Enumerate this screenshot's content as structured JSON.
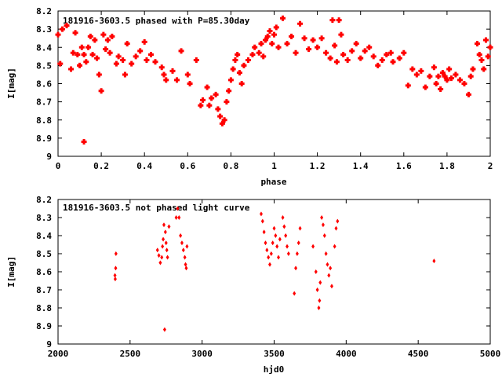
{
  "chart_data": [
    {
      "type": "scatter",
      "title": "181916-3603.5 phased with P=85.30day",
      "xlabel": "phase",
      "ylabel": "I[mag]",
      "xlim": [
        0,
        2
      ],
      "ylim": [
        9,
        8.2
      ],
      "y_inverted": true,
      "xticks": [
        "0",
        "0.2",
        "0.4",
        "0.6",
        "0.8",
        "1",
        "1.2",
        "1.4",
        "1.6",
        "1.8",
        "2"
      ],
      "yticks": [
        "8.2",
        "8.3",
        "8.4",
        "8.5",
        "8.6",
        "8.7",
        "8.8",
        "8.9",
        "9"
      ],
      "marker_color": "#ff0000",
      "grid": false,
      "series": [
        {
          "points": [
            [
              0.0,
              8.33
            ],
            [
              0.01,
              8.49
            ],
            [
              0.02,
              8.3
            ],
            [
              0.04,
              8.28
            ],
            [
              0.06,
              8.52
            ],
            [
              0.07,
              8.43
            ],
            [
              0.08,
              8.32
            ],
            [
              0.09,
              8.44
            ],
            [
              0.1,
              8.5
            ],
            [
              0.11,
              8.4
            ],
            [
              0.12,
              8.44
            ],
            [
              0.12,
              8.92
            ],
            [
              0.13,
              8.48
            ],
            [
              0.14,
              8.4
            ],
            [
              0.15,
              8.34
            ],
            [
              0.16,
              8.44
            ],
            [
              0.17,
              8.36
            ],
            [
              0.18,
              8.46
            ],
            [
              0.19,
              8.55
            ],
            [
              0.2,
              8.64
            ],
            [
              0.21,
              8.33
            ],
            [
              0.22,
              8.41
            ],
            [
              0.23,
              8.36
            ],
            [
              0.24,
              8.43
            ],
            [
              0.25,
              8.34
            ],
            [
              0.27,
              8.49
            ],
            [
              0.28,
              8.45
            ],
            [
              0.3,
              8.47
            ],
            [
              0.31,
              8.55
            ],
            [
              0.32,
              8.38
            ],
            [
              0.34,
              8.49
            ],
            [
              0.36,
              8.45
            ],
            [
              0.38,
              8.42
            ],
            [
              0.4,
              8.37
            ],
            [
              0.41,
              8.47
            ],
            [
              0.43,
              8.44
            ],
            [
              0.45,
              8.48
            ],
            [
              0.48,
              8.51
            ],
            [
              0.49,
              8.55
            ],
            [
              0.5,
              8.58
            ],
            [
              0.53,
              8.53
            ],
            [
              0.55,
              8.58
            ],
            [
              0.57,
              8.42
            ],
            [
              0.6,
              8.55
            ],
            [
              0.61,
              8.6
            ],
            [
              0.64,
              8.47
            ],
            [
              0.66,
              8.72
            ],
            [
              0.67,
              8.69
            ],
            [
              0.69,
              8.62
            ],
            [
              0.7,
              8.72
            ],
            [
              0.71,
              8.68
            ],
            [
              0.73,
              8.66
            ],
            [
              0.74,
              8.74
            ],
            [
              0.75,
              8.78
            ],
            [
              0.76,
              8.82
            ],
            [
              0.77,
              8.8
            ],
            [
              0.78,
              8.7
            ],
            [
              0.79,
              8.64
            ],
            [
              0.8,
              8.58
            ],
            [
              0.81,
              8.52
            ],
            [
              0.82,
              8.47
            ],
            [
              0.83,
              8.44
            ],
            [
              0.84,
              8.54
            ],
            [
              0.85,
              8.6
            ],
            [
              0.86,
              8.5
            ],
            [
              0.88,
              8.47
            ],
            [
              0.9,
              8.44
            ],
            [
              0.91,
              8.4
            ],
            [
              0.93,
              8.43
            ],
            [
              0.94,
              8.38
            ],
            [
              0.95,
              8.45
            ],
            [
              0.96,
              8.36
            ],
            [
              0.97,
              8.34
            ],
            [
              0.98,
              8.31
            ],
            [
              0.99,
              8.38
            ],
            [
              1.0,
              8.33
            ],
            [
              1.01,
              8.29
            ],
            [
              1.02,
              8.4
            ],
            [
              1.04,
              8.24
            ],
            [
              1.06,
              8.38
            ],
            [
              1.08,
              8.34
            ],
            [
              1.1,
              8.43
            ],
            [
              1.12,
              8.27
            ],
            [
              1.14,
              8.35
            ],
            [
              1.16,
              8.41
            ],
            [
              1.18,
              8.36
            ],
            [
              1.2,
              8.4
            ],
            [
              1.22,
              8.35
            ],
            [
              1.24,
              8.43
            ],
            [
              1.26,
              8.46
            ],
            [
              1.27,
              8.25
            ],
            [
              1.28,
              8.39
            ],
            [
              1.29,
              8.48
            ],
            [
              1.3,
              8.25
            ],
            [
              1.31,
              8.33
            ],
            [
              1.32,
              8.44
            ],
            [
              1.34,
              8.47
            ],
            [
              1.36,
              8.42
            ],
            [
              1.38,
              8.38
            ],
            [
              1.4,
              8.46
            ],
            [
              1.42,
              8.42
            ],
            [
              1.44,
              8.4
            ],
            [
              1.46,
              8.45
            ],
            [
              1.48,
              8.5
            ],
            [
              1.5,
              8.47
            ],
            [
              1.52,
              8.44
            ],
            [
              1.54,
              8.43
            ],
            [
              1.55,
              8.48
            ],
            [
              1.58,
              8.46
            ],
            [
              1.6,
              8.43
            ],
            [
              1.62,
              8.61
            ],
            [
              1.64,
              8.52
            ],
            [
              1.66,
              8.55
            ],
            [
              1.68,
              8.53
            ],
            [
              1.7,
              8.62
            ],
            [
              1.72,
              8.56
            ],
            [
              1.74,
              8.51
            ],
            [
              1.75,
              8.6
            ],
            [
              1.76,
              8.56
            ],
            [
              1.77,
              8.63
            ],
            [
              1.78,
              8.54
            ],
            [
              1.79,
              8.56
            ],
            [
              1.8,
              8.58
            ],
            [
              1.81,
              8.52
            ],
            [
              1.82,
              8.57
            ],
            [
              1.84,
              8.55
            ],
            [
              1.86,
              8.58
            ],
            [
              1.88,
              8.6
            ],
            [
              1.9,
              8.66
            ],
            [
              1.91,
              8.56
            ],
            [
              1.92,
              8.52
            ],
            [
              1.94,
              8.38
            ],
            [
              1.95,
              8.44
            ],
            [
              1.96,
              8.47
            ],
            [
              1.97,
              8.52
            ],
            [
              1.98,
              8.36
            ],
            [
              1.99,
              8.45
            ],
            [
              2.0,
              8.4
            ]
          ]
        }
      ]
    },
    {
      "type": "scatter",
      "title": "181916-3603.5 not phased light curve",
      "xlabel": "hjd0",
      "ylabel": "I[mag]",
      "xlim": [
        2000,
        5000
      ],
      "ylim": [
        9,
        8.2
      ],
      "y_inverted": true,
      "xticks": [
        "2000",
        "2500",
        "3000",
        "3500",
        "4000",
        "4500",
        "5000"
      ],
      "yticks": [
        "8.2",
        "8.3",
        "8.4",
        "8.5",
        "8.6",
        "8.7",
        "8.8",
        "8.9",
        "9"
      ],
      "marker_color": "#ff0000",
      "grid": false,
      "series": [
        {
          "points": [
            [
              2395,
              8.62
            ],
            [
              2397,
              8.64
            ],
            [
              2400,
              8.58
            ],
            [
              2402,
              8.5
            ],
            [
              2690,
              8.48
            ],
            [
              2700,
              8.51
            ],
            [
              2710,
              8.55
            ],
            [
              2720,
              8.52
            ],
            [
              2725,
              8.46
            ],
            [
              2730,
              8.42
            ],
            [
              2735,
              8.34
            ],
            [
              2740,
              8.92
            ],
            [
              2745,
              8.38
            ],
            [
              2750,
              8.44
            ],
            [
              2755,
              8.48
            ],
            [
              2760,
              8.52
            ],
            [
              2770,
              8.35
            ],
            [
              2820,
              8.3
            ],
            [
              2830,
              8.25
            ],
            [
              2840,
              8.3
            ],
            [
              2850,
              8.4
            ],
            [
              2860,
              8.44
            ],
            [
              2870,
              8.48
            ],
            [
              2880,
              8.52
            ],
            [
              2885,
              8.56
            ],
            [
              2890,
              8.58
            ],
            [
              2895,
              8.46
            ],
            [
              3410,
              8.28
            ],
            [
              3420,
              8.32
            ],
            [
              3430,
              8.38
            ],
            [
              3440,
              8.44
            ],
            [
              3450,
              8.48
            ],
            [
              3460,
              8.52
            ],
            [
              3470,
              8.56
            ],
            [
              3480,
              8.5
            ],
            [
              3490,
              8.44
            ],
            [
              3500,
              8.36
            ],
            [
              3510,
              8.4
            ],
            [
              3520,
              8.46
            ],
            [
              3530,
              8.52
            ],
            [
              3540,
              8.42
            ],
            [
              3560,
              8.3
            ],
            [
              3570,
              8.35
            ],
            [
              3580,
              8.4
            ],
            [
              3590,
              8.46
            ],
            [
              3600,
              8.5
            ],
            [
              3640,
              8.72
            ],
            [
              3650,
              8.58
            ],
            [
              3660,
              8.5
            ],
            [
              3670,
              8.44
            ],
            [
              3680,
              8.36
            ],
            [
              3770,
              8.46
            ],
            [
              3790,
              8.6
            ],
            [
              3800,
              8.7
            ],
            [
              3810,
              8.8
            ],
            [
              3815,
              8.76
            ],
            [
              3820,
              8.66
            ],
            [
              3830,
              8.3
            ],
            [
              3840,
              8.34
            ],
            [
              3850,
              8.4
            ],
            [
              3860,
              8.5
            ],
            [
              3870,
              8.56
            ],
            [
              3880,
              8.62
            ],
            [
              3890,
              8.58
            ],
            [
              3900,
              8.68
            ],
            [
              3920,
              8.46
            ],
            [
              3930,
              8.36
            ],
            [
              3940,
              8.32
            ],
            [
              4610,
              8.54
            ]
          ]
        }
      ]
    }
  ]
}
